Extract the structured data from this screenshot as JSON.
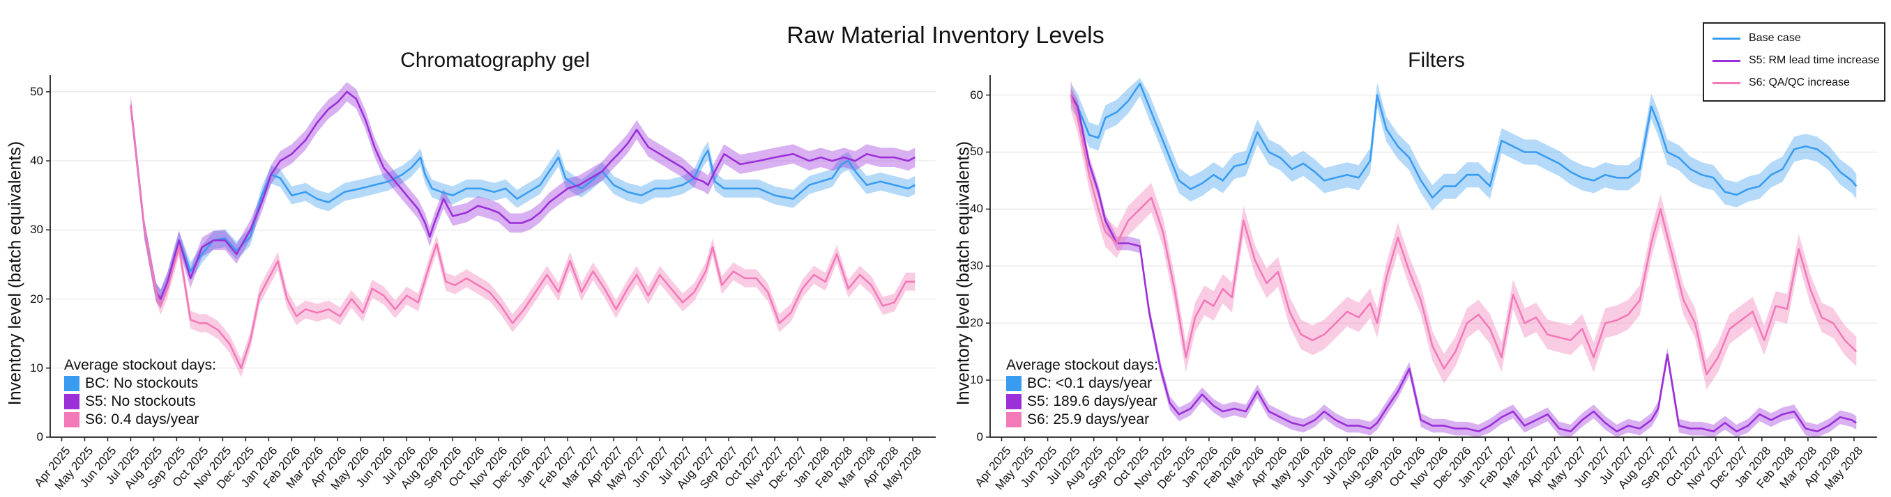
{
  "title": "Raw Material Inventory Levels",
  "legend": [
    {
      "label": "Base case",
      "color": "#3a9cf0"
    },
    {
      "label": "S5: RM lead time increase",
      "color": "#9b30d9"
    },
    {
      "label": "S6: QA/QC increase",
      "color": "#f27ab8"
    }
  ],
  "x_tick_labels": [
    "Apr 2025",
    "May 2025",
    "Jun 2025",
    "Jul 2025",
    "Aug 2025",
    "Sep 2025",
    "Oct 2025",
    "Nov 2025",
    "Dec 2025",
    "Jan 2026",
    "Feb 2026",
    "Mar 2026",
    "Apr 2026",
    "May 2026",
    "Jun 2026",
    "Jul 2026",
    "Aug 2026",
    "Sep 2026",
    "Oct 2026",
    "Nov 2026",
    "Dec 2026",
    "Jan 2027",
    "Feb 2027",
    "Mar 2027",
    "Apr 2027",
    "May 2027",
    "Jun 2027",
    "Jul 2027",
    "Aug 2027",
    "Sep 2027",
    "Oct 2027",
    "Nov 2027",
    "Dec 2027",
    "Jan 2028",
    "Feb 2028",
    "Mar 2028",
    "Apr 2028",
    "May 2028"
  ],
  "chart_data": [
    {
      "type": "line",
      "title": "Chromatography gel",
      "ylabel": "Inventory level (batch equivalents)",
      "xlabel": "",
      "ylim": [
        0,
        52
      ],
      "yticks": [
        0,
        10,
        20,
        30,
        40,
        50
      ],
      "x_unit": "months since Apr 2025",
      "stockout_title": "Average stockout days:",
      "stockout": [
        {
          "label": "BC: No stockouts",
          "color": "#3a9cf0"
        },
        {
          "label": "S5: No stockouts",
          "color": "#9b30d9"
        },
        {
          "label": "S6: 0.4 days/year",
          "color": "#f27ab8"
        }
      ],
      "series": [
        {
          "name": "Base case",
          "color": "#3a9cf0",
          "band": 1.3,
          "x": [
            3.0,
            3.2,
            3.6,
            4.1,
            4.3,
            4.6,
            5.1,
            5.6,
            6.1,
            6.6,
            7.1,
            7.6,
            8.2,
            8.7,
            9.1,
            9.5,
            10.0,
            10.6,
            11.1,
            11.6,
            12.3,
            13.0,
            13.6,
            14.2,
            14.8,
            15.2,
            15.6,
            15.8,
            16.1,
            16.5,
            17.0,
            17.6,
            18.2,
            18.8,
            19.3,
            19.8,
            20.3,
            20.8,
            21.2,
            21.6,
            21.9,
            22.3,
            22.6,
            23.0,
            23.5,
            24.0,
            24.6,
            25.2,
            25.8,
            26.4,
            27.0,
            27.5,
            27.9,
            28.1,
            28.4,
            28.8,
            29.5,
            30.3,
            31.0,
            31.8,
            32.5,
            33.0,
            33.5,
            33.9,
            34.2,
            34.5,
            35.0,
            35.6,
            36.2,
            36.8,
            37.1
          ],
          "y": [
            48.0,
            42.0,
            30.0,
            21.0,
            20.0,
            22.5,
            28.5,
            24.0,
            26.5,
            28.5,
            28.8,
            27.0,
            29.0,
            35.0,
            38.0,
            37.5,
            35.0,
            35.5,
            34.5,
            34.0,
            35.5,
            36.0,
            36.5,
            37.0,
            38.0,
            39.0,
            40.5,
            38.0,
            36.0,
            35.5,
            35.0,
            36.0,
            36.0,
            35.5,
            36.0,
            34.5,
            35.5,
            36.5,
            38.5,
            40.5,
            37.5,
            36.5,
            36.0,
            37.0,
            38.5,
            36.5,
            35.5,
            35.0,
            36.0,
            36.0,
            36.5,
            37.5,
            40.5,
            41.5,
            37.0,
            36.0,
            36.0,
            36.0,
            35.0,
            34.5,
            36.5,
            37.0,
            37.5,
            39.5,
            40.0,
            38.5,
            36.5,
            37.0,
            36.5,
            36.0,
            36.5
          ]
        },
        {
          "name": "S5: RM lead time increase",
          "color": "#9b30d9",
          "band": 1.4,
          "x": [
            3.0,
            3.2,
            3.6,
            4.1,
            4.3,
            4.6,
            5.1,
            5.6,
            6.1,
            6.6,
            7.1,
            7.6,
            8.2,
            8.7,
            9.1,
            9.5,
            10.0,
            10.6,
            11.1,
            11.6,
            12.0,
            12.4,
            12.8,
            13.2,
            13.6,
            14.0,
            14.5,
            15.0,
            15.5,
            15.8,
            16.0,
            16.2,
            16.6,
            17.0,
            17.6,
            18.1,
            18.6,
            19.0,
            19.5,
            20.0,
            20.4,
            20.8,
            21.2,
            21.6,
            22.0,
            22.5,
            23.0,
            23.5,
            23.9,
            24.2,
            24.6,
            25.0,
            25.5,
            26.0,
            26.5,
            27.0,
            27.5,
            27.9,
            28.1,
            28.4,
            28.8,
            29.5,
            30.3,
            31.0,
            31.8,
            32.5,
            33.0,
            33.5,
            34.0,
            34.5,
            35.0,
            35.6,
            36.2,
            36.8,
            37.1
          ],
          "y": [
            48.0,
            42.0,
            30.0,
            21.0,
            20.0,
            22.5,
            28.5,
            23.0,
            27.5,
            28.5,
            28.5,
            26.5,
            30.0,
            34.0,
            38.0,
            40.0,
            41.0,
            43.0,
            45.5,
            47.5,
            48.5,
            50.0,
            49.0,
            46.0,
            42.0,
            39.0,
            37.0,
            35.0,
            33.0,
            31.0,
            29.0,
            31.0,
            34.5,
            32.0,
            32.5,
            33.5,
            33.0,
            32.5,
            31.0,
            31.0,
            31.5,
            32.5,
            34.0,
            35.0,
            36.0,
            36.5,
            37.5,
            38.5,
            40.0,
            41.0,
            42.5,
            44.5,
            42.0,
            41.0,
            40.0,
            39.0,
            37.5,
            37.0,
            36.5,
            38.5,
            41.0,
            39.5,
            40.0,
            40.5,
            41.0,
            40.0,
            40.5,
            40.0,
            40.5,
            40.0,
            41.0,
            40.5,
            40.5,
            40.0,
            40.5
          ]
        },
        {
          "name": "S6: QA/QC increase",
          "color": "#f27ab8",
          "band": 1.3,
          "x": [
            3.0,
            3.2,
            3.6,
            4.1,
            4.3,
            4.6,
            5.1,
            5.6,
            6.0,
            6.3,
            6.8,
            7.3,
            7.8,
            8.2,
            8.6,
            9.0,
            9.4,
            9.8,
            10.2,
            10.6,
            11.1,
            11.6,
            12.1,
            12.6,
            13.1,
            13.5,
            14.0,
            14.5,
            15.0,
            15.5,
            16.0,
            16.3,
            16.7,
            17.1,
            17.6,
            18.1,
            18.6,
            19.1,
            19.6,
            20.1,
            20.6,
            21.1,
            21.6,
            22.1,
            22.6,
            23.1,
            23.6,
            24.1,
            24.6,
            25.0,
            25.5,
            26.0,
            26.5,
            27.0,
            27.5,
            28.0,
            28.3,
            28.7,
            29.2,
            29.7,
            30.2,
            30.7,
            31.2,
            31.7,
            32.2,
            32.7,
            33.2,
            33.7,
            34.2,
            34.7,
            35.2,
            35.7,
            36.2,
            36.7,
            37.1
          ],
          "y": [
            48.0,
            42.0,
            30.0,
            21.0,
            19.0,
            21.5,
            27.5,
            17.0,
            16.5,
            16.5,
            15.5,
            13.5,
            10.0,
            14.0,
            20.5,
            23.0,
            25.5,
            20.0,
            17.5,
            18.5,
            18.0,
            18.5,
            17.5,
            20.0,
            18.0,
            21.5,
            20.5,
            18.5,
            20.5,
            19.5,
            25.0,
            28.0,
            22.5,
            22.0,
            23.0,
            22.0,
            21.0,
            19.0,
            16.5,
            18.5,
            21.0,
            23.5,
            21.0,
            25.5,
            21.0,
            24.0,
            21.5,
            18.5,
            21.5,
            23.5,
            20.5,
            23.5,
            21.5,
            19.5,
            21.0,
            24.0,
            27.5,
            22.0,
            24.0,
            23.0,
            23.0,
            21.0,
            16.5,
            18.0,
            21.5,
            23.5,
            22.5,
            26.5,
            21.5,
            23.5,
            22.0,
            19.0,
            19.5,
            22.5,
            22.5
          ]
        }
      ]
    },
    {
      "type": "line",
      "title": "Filters",
      "ylabel": "Inventory level (batch equivalents)",
      "xlabel": "",
      "ylim": [
        0,
        63
      ],
      "yticks": [
        0,
        10,
        20,
        30,
        40,
        50,
        60
      ],
      "x_unit": "months since Apr 2025",
      "stockout_title": "Average stockout days:",
      "stockout": [
        {
          "label": "BC: <0.1 days/year",
          "color": "#3a9cf0"
        },
        {
          "label": "S5: 189.6 days/year",
          "color": "#9b30d9"
        },
        {
          "label": "S6: 25.9 days/year",
          "color": "#f27ab8"
        }
      ],
      "series": [
        {
          "name": "Base case",
          "color": "#3a9cf0",
          "band": 2.2,
          "x": [
            3.0,
            3.3,
            3.8,
            4.2,
            4.5,
            5.0,
            5.5,
            6.0,
            6.4,
            6.9,
            7.3,
            7.7,
            8.2,
            8.7,
            9.2,
            9.6,
            10.1,
            10.6,
            11.1,
            11.6,
            12.1,
            12.6,
            13.1,
            13.6,
            14.0,
            14.5,
            15.0,
            15.5,
            16.0,
            16.3,
            16.7,
            17.2,
            17.7,
            18.2,
            18.7,
            19.2,
            19.7,
            20.2,
            20.7,
            21.2,
            21.7,
            22.2,
            22.7,
            23.2,
            23.7,
            24.2,
            24.7,
            25.2,
            25.7,
            26.2,
            26.7,
            27.2,
            27.7,
            28.2,
            28.5,
            28.9,
            29.4,
            29.9,
            30.4,
            30.9,
            31.4,
            31.9,
            32.4,
            32.9,
            33.4,
            33.9,
            34.4,
            34.9,
            35.4,
            35.9,
            36.4,
            36.9,
            37.1
          ],
          "y": [
            60.0,
            58.0,
            53.0,
            52.5,
            56.0,
            57.0,
            59.0,
            62.0,
            58.0,
            53.0,
            49.0,
            45.0,
            43.5,
            44.5,
            46.0,
            45.0,
            47.5,
            48.0,
            53.5,
            50.0,
            49.0,
            47.0,
            48.0,
            46.5,
            45.0,
            45.5,
            46.0,
            45.5,
            48.5,
            60.0,
            54.0,
            51.0,
            49.0,
            45.0,
            42.0,
            44.0,
            44.0,
            46.0,
            46.0,
            44.0,
            52.0,
            51.0,
            50.0,
            50.0,
            49.0,
            48.0,
            46.5,
            45.5,
            45.0,
            46.0,
            45.5,
            45.5,
            47.0,
            58.0,
            55.0,
            50.0,
            49.0,
            47.0,
            46.0,
            45.5,
            43.0,
            42.5,
            43.5,
            44.0,
            46.0,
            47.0,
            50.5,
            51.0,
            50.5,
            49.0,
            46.5,
            45.0,
            44.0
          ]
        },
        {
          "name": "S5: RM lead time increase",
          "color": "#9b30d9",
          "band": 1.2,
          "x": [
            3.0,
            3.3,
            3.8,
            4.2,
            4.5,
            5.0,
            5.5,
            6.0,
            6.4,
            6.9,
            7.3,
            7.7,
            8.2,
            8.7,
            9.2,
            9.6,
            10.1,
            10.6,
            11.1,
            11.6,
            12.1,
            12.6,
            13.1,
            13.6,
            14.0,
            14.5,
            15.0,
            15.5,
            16.0,
            16.3,
            16.7,
            17.2,
            17.7,
            18.2,
            18.7,
            19.2,
            19.7,
            20.2,
            20.7,
            21.2,
            21.7,
            22.2,
            22.7,
            23.2,
            23.7,
            24.2,
            24.7,
            25.2,
            25.7,
            26.2,
            26.7,
            27.2,
            27.7,
            28.2,
            28.5,
            28.9,
            29.4,
            29.9,
            30.4,
            30.9,
            31.4,
            31.9,
            32.4,
            32.9,
            33.4,
            33.9,
            34.4,
            34.9,
            35.4,
            35.9,
            36.4,
            36.9,
            37.1
          ],
          "y": [
            60.0,
            58.0,
            48.0,
            43.0,
            38.0,
            34.0,
            34.0,
            33.5,
            22.0,
            12.0,
            6.0,
            4.0,
            5.0,
            7.5,
            5.5,
            4.5,
            5.0,
            4.5,
            8.0,
            4.5,
            3.5,
            2.5,
            2.0,
            3.0,
            4.5,
            3.0,
            2.0,
            2.0,
            1.5,
            2.5,
            5.0,
            8.0,
            12.0,
            3.0,
            2.0,
            2.0,
            1.5,
            1.5,
            1.0,
            2.0,
            3.5,
            4.5,
            2.0,
            3.0,
            4.0,
            1.5,
            1.0,
            3.0,
            4.5,
            2.5,
            1.0,
            2.0,
            1.5,
            3.0,
            5.0,
            14.5,
            2.0,
            1.5,
            1.5,
            1.0,
            2.5,
            1.0,
            2.0,
            4.0,
            3.0,
            4.0,
            4.5,
            1.5,
            1.0,
            2.0,
            3.5,
            3.0,
            2.5
          ]
        },
        {
          "name": "S6: QA/QC increase",
          "color": "#f27ab8",
          "band": 2.6,
          "x": [
            3.0,
            3.3,
            3.8,
            4.2,
            4.5,
            5.0,
            5.5,
            6.0,
            6.5,
            7.0,
            7.5,
            8.0,
            8.4,
            8.8,
            9.2,
            9.6,
            10.0,
            10.5,
            11.0,
            11.5,
            12.0,
            12.5,
            13.0,
            13.5,
            14.0,
            14.5,
            15.0,
            15.5,
            16.0,
            16.3,
            16.7,
            17.2,
            17.7,
            18.2,
            18.7,
            19.2,
            19.7,
            20.2,
            20.7,
            21.2,
            21.7,
            22.2,
            22.7,
            23.2,
            23.7,
            24.2,
            24.7,
            25.2,
            25.7,
            26.2,
            26.7,
            27.2,
            27.7,
            28.2,
            28.6,
            29.1,
            29.6,
            30.1,
            30.6,
            31.1,
            31.6,
            32.1,
            32.6,
            33.1,
            33.6,
            34.1,
            34.6,
            35.1,
            35.6,
            36.1,
            36.6,
            37.1
          ],
          "y": [
            60.0,
            56.0,
            46.0,
            40.0,
            36.0,
            34.0,
            38.0,
            40.0,
            42.0,
            36.0,
            26.0,
            14.0,
            21.0,
            24.0,
            23.0,
            26.0,
            24.5,
            38.0,
            31.0,
            27.0,
            29.0,
            22.0,
            18.0,
            17.0,
            18.0,
            20.0,
            22.0,
            21.0,
            23.5,
            20.0,
            28.0,
            35.0,
            29.0,
            24.0,
            16.0,
            12.0,
            15.0,
            20.0,
            21.5,
            19.0,
            14.0,
            25.0,
            20.0,
            21.0,
            18.0,
            17.5,
            17.0,
            19.0,
            14.0,
            20.0,
            20.5,
            21.5,
            24.0,
            34.0,
            40.0,
            32.0,
            24.0,
            20.0,
            11.0,
            14.0,
            19.0,
            20.5,
            22.0,
            17.0,
            23.0,
            22.5,
            33.0,
            26.0,
            21.0,
            20.0,
            17.0,
            15.0
          ]
        }
      ]
    }
  ]
}
